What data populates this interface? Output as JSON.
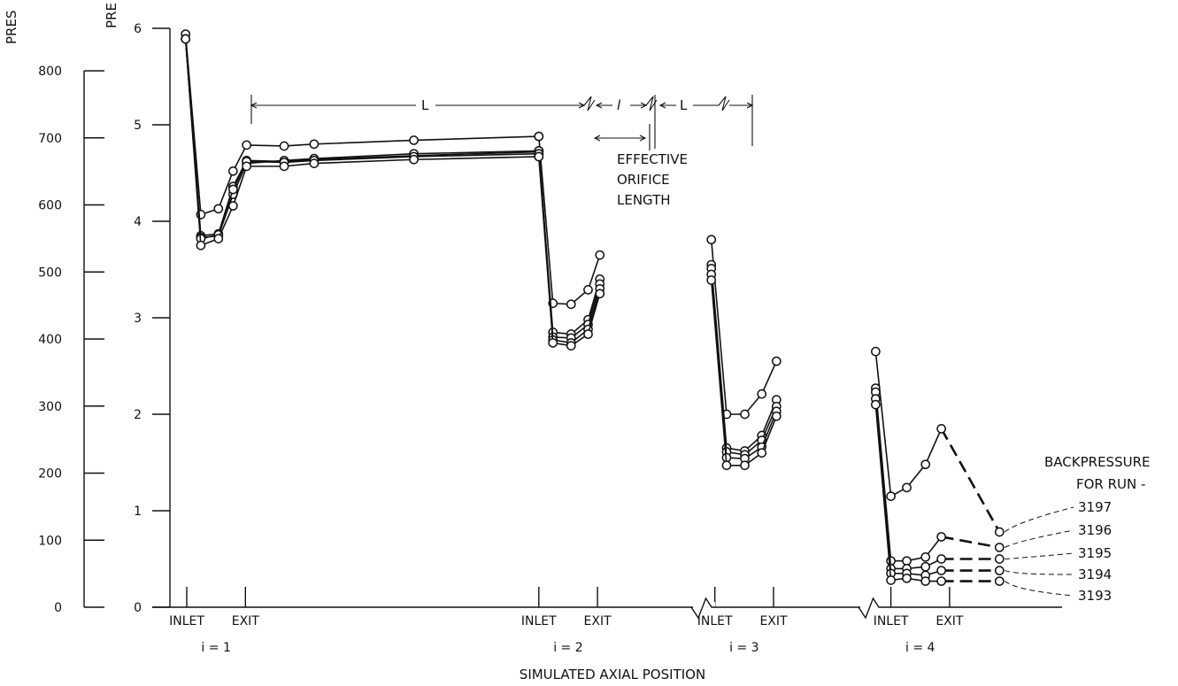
{
  "chart_data": {
    "type": "line",
    "ylabel_left_fragment": "PRES",
    "ylabel_right_fragment": "PRE",
    "xlabel": "SIMULATED AXIAL POSITION",
    "left_axis": {
      "ticks": [
        "0",
        "100",
        "200",
        "300",
        "400",
        "500",
        "600",
        "700",
        "800"
      ],
      "ylim": [
        0,
        900
      ]
    },
    "right_axis": {
      "ticks": [
        "0",
        "1",
        "2",
        "3",
        "4",
        "5",
        "6"
      ],
      "ylim": [
        0,
        6
      ]
    },
    "x_markers": [
      {
        "label": "INLET",
        "x": 0
      },
      {
        "label": "EXIT",
        "x": 1
      },
      {
        "label": "INLET",
        "x": 6
      },
      {
        "label": "EXIT",
        "x": 7
      },
      {
        "label": "INLET",
        "x": 9
      },
      {
        "label": "EXIT",
        "x": 10
      },
      {
        "label": "INLET",
        "x": 12
      },
      {
        "label": "EXIT",
        "x": 13
      }
    ],
    "stage_labels": [
      {
        "label": "i = 1",
        "x": 0.5
      },
      {
        "label": "i = 2",
        "x": 6.5
      },
      {
        "label": "i = 3",
        "x": 9.5
      },
      {
        "label": "i = 4",
        "x": 12.5
      }
    ],
    "annotations": {
      "L_label": "L",
      "l_label": "l",
      "effective_orifice": [
        "EFFECTIVE",
        "ORIFICE",
        "LENGTH"
      ],
      "backpressure": [
        "BACKPRESSURE",
        "FOR RUN -"
      ]
    },
    "series": [
      {
        "name": "3197",
        "backpressure_x": 13.85,
        "segments": [
          [
            [
              -0.02,
              5.94
            ],
            [
              0.24,
              4.07
            ],
            [
              0.54,
              4.13
            ],
            [
              0.79,
              4.52
            ],
            [
              1.02,
              4.79
            ],
            [
              1.66,
              4.78
            ],
            [
              2.17,
              4.8
            ],
            [
              3.87,
              4.84
            ],
            [
              6.0,
              4.88
            ]
          ],
          [
            [
              6.0,
              4.88
            ],
            [
              6.24,
              3.15
            ],
            [
              6.55,
              3.14
            ],
            [
              6.84,
              3.29
            ],
            [
              7.04,
              3.65
            ]
          ],
          [
            [
              8.94,
              3.81
            ],
            [
              9.2,
              2.0
            ],
            [
              9.51,
              2.0
            ],
            [
              9.8,
              2.21
            ],
            [
              10.05,
              2.55
            ]
          ],
          [
            [
              11.74,
              2.65
            ],
            [
              12.0,
              1.15
            ],
            [
              12.27,
              1.24
            ],
            [
              12.59,
              1.48
            ],
            [
              12.86,
              1.85
            ],
            [
              13.85,
              0.78
            ]
          ]
        ]
      },
      {
        "name": "3196",
        "backpressure_x": 13.85,
        "segments": [
          [
            [
              -0.02,
              5.89
            ],
            [
              0.24,
              3.85
            ],
            [
              0.54,
              3.87
            ],
            [
              0.79,
              4.36
            ],
            [
              1.02,
              4.63
            ],
            [
              1.66,
              4.62
            ],
            [
              2.17,
              4.64
            ],
            [
              3.87,
              4.68
            ],
            [
              6.0,
              4.72
            ]
          ],
          [
            [
              6.0,
              4.72
            ],
            [
              6.24,
              2.85
            ],
            [
              6.55,
              2.83
            ],
            [
              6.84,
              2.98
            ],
            [
              7.04,
              3.4
            ]
          ],
          [
            [
              8.94,
              3.55
            ],
            [
              9.2,
              1.65
            ],
            [
              9.51,
              1.62
            ],
            [
              9.8,
              1.78
            ],
            [
              10.05,
              2.15
            ]
          ],
          [
            [
              11.74,
              2.27
            ],
            [
              12.0,
              0.48
            ],
            [
              12.27,
              0.48
            ],
            [
              12.59,
              0.52
            ],
            [
              12.86,
              0.73
            ],
            [
              13.85,
              0.62
            ]
          ]
        ]
      },
      {
        "name": "3195",
        "backpressure_x": 13.85,
        "segments": [
          [
            [
              -0.02,
              5.89
            ],
            [
              0.24,
              3.83
            ],
            [
              0.54,
              3.85
            ],
            [
              0.79,
              4.28
            ],
            [
              1.02,
              4.6
            ],
            [
              1.66,
              4.63
            ],
            [
              2.17,
              4.65
            ],
            [
              3.87,
              4.7
            ],
            [
              6.0,
              4.73
            ]
          ],
          [
            [
              6.0,
              4.73
            ],
            [
              6.24,
              2.8
            ],
            [
              6.55,
              2.79
            ],
            [
              6.84,
              2.93
            ],
            [
              7.04,
              3.35
            ]
          ],
          [
            [
              8.94,
              3.51
            ],
            [
              9.2,
              1.61
            ],
            [
              9.51,
              1.58
            ],
            [
              9.8,
              1.73
            ],
            [
              10.05,
              2.08
            ]
          ],
          [
            [
              11.74,
              2.23
            ],
            [
              12.0,
              0.4
            ],
            [
              12.27,
              0.4
            ],
            [
              12.59,
              0.42
            ],
            [
              12.86,
              0.5
            ],
            [
              13.85,
              0.5
            ]
          ]
        ]
      },
      {
        "name": "3194",
        "backpressure_x": 13.85,
        "segments": [
          [
            [
              -0.02,
              5.89
            ],
            [
              0.24,
              3.82
            ],
            [
              0.54,
              3.86
            ],
            [
              0.79,
              4.33
            ],
            [
              1.02,
              4.62
            ],
            [
              1.66,
              4.61
            ],
            [
              2.17,
              4.63
            ],
            [
              3.87,
              4.67
            ],
            [
              6.0,
              4.7
            ]
          ],
          [
            [
              6.0,
              4.7
            ],
            [
              6.24,
              2.77
            ],
            [
              6.55,
              2.74
            ],
            [
              6.84,
              2.88
            ],
            [
              7.04,
              3.3
            ]
          ],
          [
            [
              8.94,
              3.45
            ],
            [
              9.2,
              1.55
            ],
            [
              9.51,
              1.54
            ],
            [
              9.8,
              1.66
            ],
            [
              10.05,
              2.03
            ]
          ],
          [
            [
              11.74,
              2.16
            ],
            [
              12.0,
              0.35
            ],
            [
              12.27,
              0.35
            ],
            [
              12.59,
              0.33
            ],
            [
              12.86,
              0.38
            ],
            [
              13.85,
              0.38
            ]
          ]
        ]
      },
      {
        "name": "3193",
        "backpressure_x": 13.85,
        "segments": [
          [
            [
              -0.02,
              5.89
            ],
            [
              0.24,
              3.75
            ],
            [
              0.54,
              3.82
            ],
            [
              0.79,
              4.16
            ],
            [
              1.02,
              4.57
            ],
            [
              1.66,
              4.57
            ],
            [
              2.17,
              4.6
            ],
            [
              3.87,
              4.64
            ],
            [
              6.0,
              4.67
            ]
          ],
          [
            [
              6.0,
              4.67
            ],
            [
              6.24,
              2.74
            ],
            [
              6.55,
              2.71
            ],
            [
              6.84,
              2.83
            ],
            [
              7.04,
              3.25
            ]
          ],
          [
            [
              8.94,
              3.39
            ],
            [
              9.2,
              1.47
            ],
            [
              9.51,
              1.47
            ],
            [
              9.8,
              1.6
            ],
            [
              10.05,
              1.98
            ]
          ],
          [
            [
              11.74,
              2.1
            ],
            [
              12.0,
              0.28
            ],
            [
              12.27,
              0.3
            ],
            [
              12.59,
              0.27
            ],
            [
              12.86,
              0.27
            ],
            [
              13.85,
              0.27
            ]
          ]
        ]
      }
    ]
  }
}
